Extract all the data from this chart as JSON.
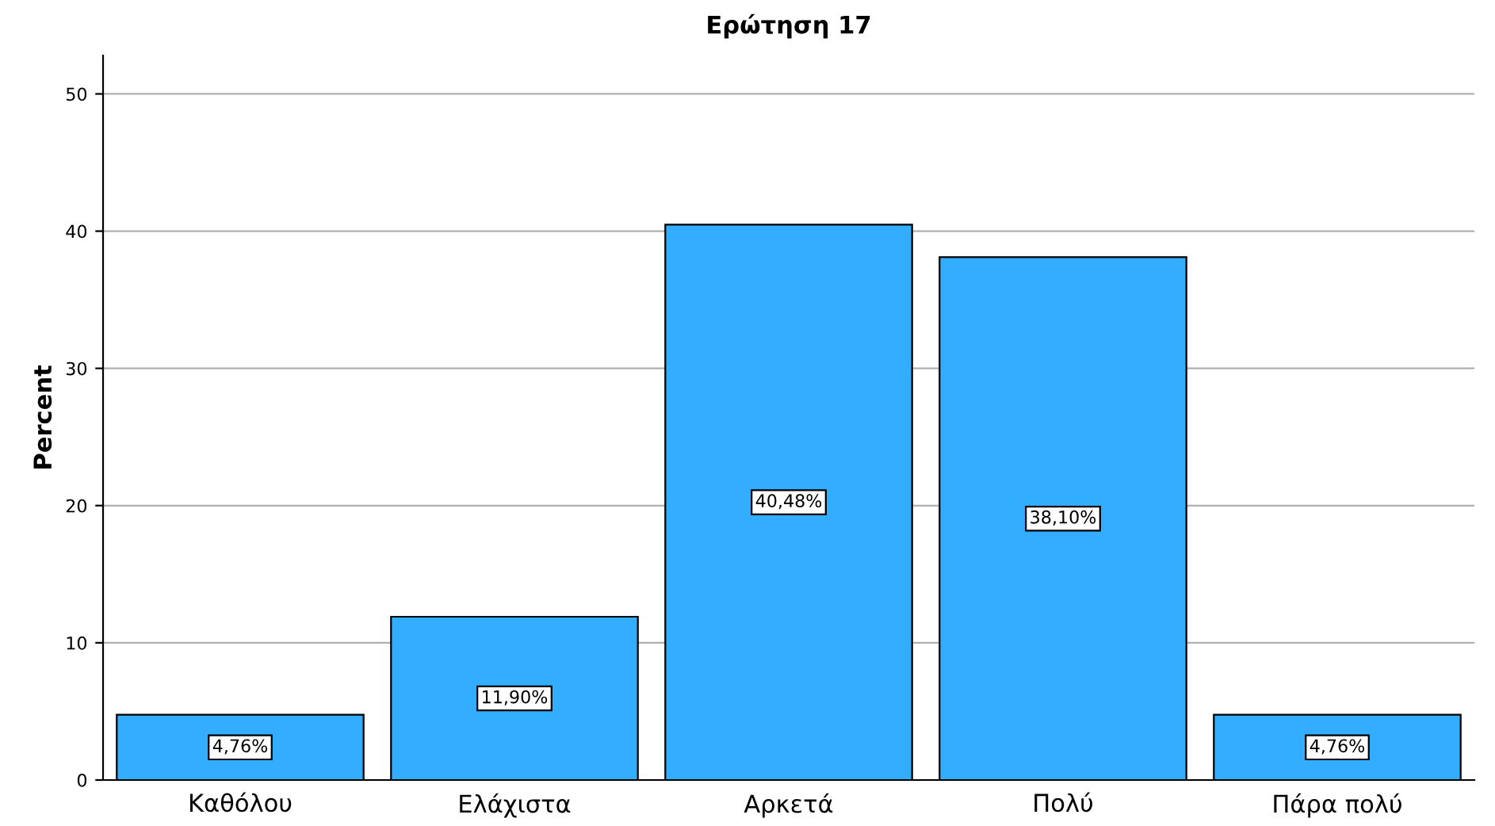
{
  "chart_data": {
    "type": "bar",
    "title": "Ερώτηση 17",
    "ylabel": "Percent",
    "categories": [
      "Καθόλου",
      "Ελάχιστα",
      "Αρκετά",
      "Πολύ",
      "Πάρα πολύ"
    ],
    "values": [
      4.76,
      11.9,
      40.48,
      38.1,
      4.76
    ],
    "value_labels": [
      "4,76%",
      "11,90%",
      "40,48%",
      "38,10%",
      "4,76%"
    ],
    "color": "#33adff",
    "ylim": [
      0,
      52.8
    ],
    "yticks": [
      0,
      10,
      20,
      30,
      40,
      50
    ],
    "grid": "y"
  }
}
